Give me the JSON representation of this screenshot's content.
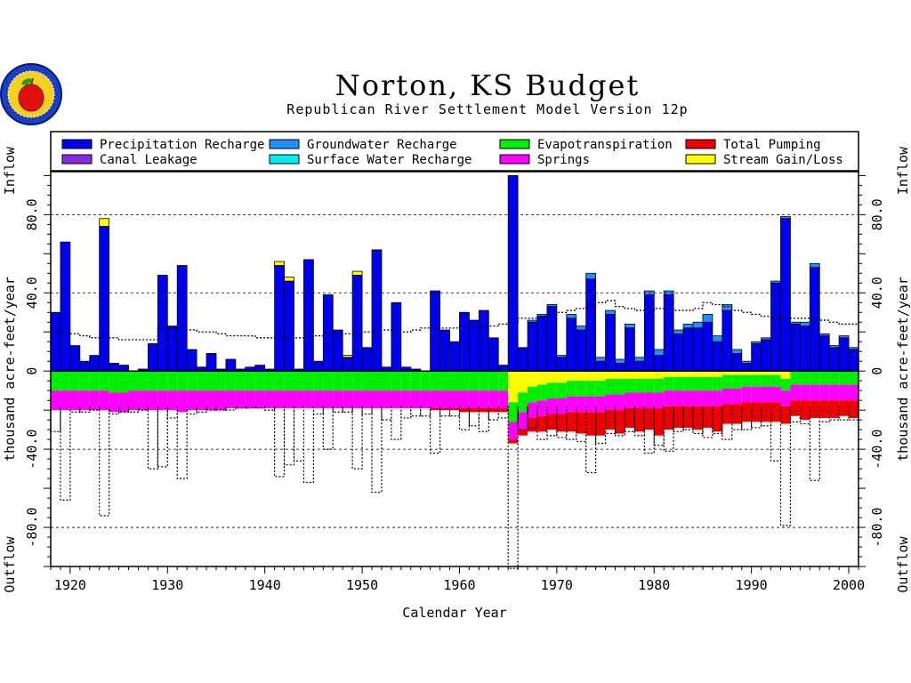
{
  "title": "Norton, KS Budget",
  "subtitle": "Republican River Settlement Model Version 12p",
  "logo": {
    "name": "apple-seal-logo"
  },
  "chart_data": {
    "type": "bar",
    "xlabel": "Calendar Year",
    "ylabel": "thousand acre-feet/year",
    "ylabel_top": "Inflow",
    "ylabel_bottom": "Outflow",
    "xlim": [
      1918,
      2001
    ],
    "ylim": [
      -100,
      102
    ],
    "xticks": [
      1920,
      1930,
      1940,
      1950,
      1960,
      1970,
      1980,
      1990,
      2000
    ],
    "yticks": [
      -80,
      -40,
      0,
      40,
      80
    ],
    "ytick_labels": [
      "-80.0",
      "-40.0",
      "0",
      "40.0",
      "80.0"
    ],
    "dashed_grid_y": [
      -80,
      -40,
      40,
      80
    ],
    "legend_position": "top",
    "legend": [
      {
        "label": "Precipitation Recharge",
        "color": "#0000ee"
      },
      {
        "label": "Groundwater Recharge",
        "color": "#1e90ff"
      },
      {
        "label": "Evapotranspiration",
        "color": "#00ee00"
      },
      {
        "label": "Total Pumping",
        "color": "#ee0000"
      },
      {
        "label": "Canal Leakage",
        "color": "#8a2be2"
      },
      {
        "label": "Surface Water Recharge",
        "color": "#00eeee"
      },
      {
        "label": "Springs",
        "color": "#ff00ff"
      },
      {
        "label": "Stream Gain/Loss",
        "color": "#ffff00"
      }
    ],
    "years": [
      1918,
      1919,
      1920,
      1921,
      1922,
      1923,
      1924,
      1925,
      1926,
      1927,
      1928,
      1929,
      1930,
      1931,
      1932,
      1933,
      1934,
      1935,
      1936,
      1937,
      1938,
      1939,
      1940,
      1941,
      1942,
      1943,
      1944,
      1945,
      1946,
      1947,
      1948,
      1949,
      1950,
      1951,
      1952,
      1953,
      1954,
      1955,
      1956,
      1957,
      1958,
      1959,
      1960,
      1961,
      1962,
      1963,
      1964,
      1965,
      1966,
      1967,
      1968,
      1969,
      1970,
      1971,
      1972,
      1973,
      1974,
      1975,
      1976,
      1977,
      1978,
      1979,
      1980,
      1981,
      1982,
      1983,
      1984,
      1985,
      1986,
      1987,
      1988,
      1989,
      1990,
      1991,
      1992,
      1993,
      1994,
      1995,
      1996,
      1997,
      1998,
      1999,
      2000
    ],
    "series": [
      {
        "name": "Precipitation Recharge",
        "values": [
          30,
          66,
          13,
          5,
          8,
          74,
          4,
          3,
          0,
          1,
          14,
          49,
          23,
          54,
          11,
          2,
          9,
          1,
          6,
          1,
          2,
          3,
          1,
          54,
          46,
          1,
          57,
          5,
          39,
          21,
          7,
          49,
          12,
          62,
          2,
          35,
          2,
          1,
          0,
          41,
          21,
          15,
          30,
          26,
          31,
          17,
          3,
          100,
          12,
          25,
          28,
          33,
          7,
          27,
          21,
          47,
          5,
          29,
          4,
          22,
          5,
          39,
          8,
          39,
          19,
          22,
          22,
          25,
          15,
          31,
          9,
          4,
          14,
          16,
          45,
          78,
          24,
          23,
          53,
          18,
          12,
          17,
          11
        ]
      },
      {
        "name": "Groundwater Recharge",
        "values": [
          0,
          0,
          0,
          0,
          0,
          0,
          0,
          0,
          0,
          0,
          0,
          0,
          0,
          0,
          0,
          0,
          0,
          0,
          0,
          0,
          0,
          0,
          0,
          0,
          0,
          0,
          0,
          0,
          0,
          0,
          0,
          0,
          0,
          0,
          0,
          0,
          0,
          0,
          0,
          0,
          0,
          0,
          0,
          0,
          0,
          0,
          0,
          0,
          0,
          1,
          1,
          1,
          1,
          2,
          2,
          3,
          2,
          2,
          2,
          2,
          2,
          2,
          3,
          2,
          2,
          2,
          3,
          4,
          3,
          3,
          2,
          1,
          1,
          1,
          1,
          1,
          1,
          2,
          2,
          1,
          1,
          1,
          1
        ]
      },
      {
        "name": "Stream Gain/Loss",
        "values": [
          0,
          0,
          0,
          0,
          0,
          4,
          0,
          0,
          0,
          0,
          0,
          0,
          0,
          0,
          0,
          0,
          0,
          0,
          0,
          0,
          0,
          0,
          0,
          2,
          2,
          0,
          0,
          0,
          0,
          0,
          1,
          2,
          0,
          0,
          0,
          0,
          0,
          0,
          0,
          0,
          0,
          0,
          0,
          0,
          0,
          0,
          0,
          0,
          0,
          0,
          0,
          0,
          0,
          0,
          0,
          0,
          0,
          0,
          0,
          0,
          0,
          0,
          0,
          0,
          0,
          0,
          0,
          0,
          0,
          0,
          0,
          0,
          0,
          0,
          0,
          0,
          0,
          0,
          0,
          0,
          0,
          0,
          0
        ]
      },
      {
        "name": "Evapotranspiration",
        "values": [
          -10,
          -10,
          -10,
          -10,
          -10,
          -10,
          -11,
          -11,
          -10,
          -10,
          -10,
          -10,
          -10,
          -10,
          -10,
          -10,
          -10,
          -10,
          -10,
          -10,
          -10,
          -10,
          -10,
          -10,
          -10,
          -10,
          -10,
          -10,
          -10,
          -10,
          -10,
          -10,
          -10,
          -10,
          -10,
          -10,
          -10,
          -10,
          -10,
          -10,
          -10,
          -10,
          -10,
          -10,
          -10,
          -10,
          -10,
          -10,
          -10,
          -8,
          -8,
          -8,
          -8,
          -8,
          -8,
          -8,
          -8,
          -8,
          -8,
          -7,
          -7,
          -7,
          -7,
          -7,
          -7,
          -7,
          -7,
          -7,
          -7,
          -7,
          -7,
          -6,
          -6,
          -6,
          -6,
          -6,
          -7,
          -7,
          -7,
          -7,
          -7,
          -7,
          -7
        ]
      },
      {
        "name": "Springs",
        "values": [
          -10,
          -10,
          -10,
          -10,
          -10,
          -10,
          -10,
          -10,
          -10,
          -10,
          -10,
          -10,
          -10,
          -11,
          -10,
          -10,
          -10,
          -10,
          -9,
          -9,
          -9,
          -9,
          -9,
          -9,
          -9,
          -9,
          -9,
          -9,
          -9,
          -9,
          -9,
          -9,
          -9,
          -9,
          -9,
          -9,
          -9,
          -9,
          -9,
          -9,
          -9,
          -9,
          -9,
          -9,
          -9,
          -9,
          -9,
          -9,
          -9,
          -8,
          -8,
          -8,
          -8,
          -8,
          -8,
          -8,
          -8,
          -8,
          -8,
          -8,
          -8,
          -8,
          -8,
          -8,
          -8,
          -8,
          -8,
          -8,
          -8,
          -8,
          -8,
          -8,
          -8,
          -8,
          -8,
          -8,
          -8,
          -8,
          -8,
          -8,
          -8,
          -8,
          -8
        ]
      },
      {
        "name": "Total Pumping",
        "values": [
          0,
          0,
          0,
          0,
          0,
          0,
          0,
          0,
          0,
          0,
          0,
          0,
          0,
          0,
          0,
          0,
          0,
          0,
          0,
          0,
          0,
          0,
          0,
          0,
          0,
          0,
          0,
          0,
          0,
          0,
          0,
          0,
          0,
          0,
          0,
          0,
          0,
          0,
          0,
          -1,
          -1,
          -1,
          -2,
          -2,
          -2,
          -2,
          -2,
          -2,
          -3,
          -7,
          -8,
          -8,
          -9,
          -10,
          -11,
          -12,
          -12,
          -10,
          -12,
          -10,
          -12,
          -11,
          -14,
          -12,
          -11,
          -11,
          -12,
          -11,
          -13,
          -10,
          -10,
          -10,
          -10,
          -10,
          -10,
          -9,
          -8,
          -10,
          -9,
          -9,
          -9,
          -8,
          -9
        ]
      },
      {
        "name": "Stream Gain/Loss outflow",
        "values": [
          0,
          0,
          0,
          0,
          0,
          0,
          0,
          0,
          0,
          0,
          0,
          0,
          0,
          0,
          0,
          0,
          0,
          0,
          0,
          0,
          0,
          0,
          0,
          0,
          0,
          0,
          0,
          0,
          0,
          0,
          0,
          0,
          0,
          0,
          0,
          0,
          0,
          0,
          0,
          0,
          0,
          0,
          0,
          0,
          0,
          0,
          0,
          -16,
          -11,
          -8,
          -7,
          -6,
          -6,
          -5,
          -5,
          -5,
          -5,
          -4,
          -4,
          -4,
          -4,
          -4,
          -4,
          -3,
          -3,
          -3,
          -3,
          -3,
          -3,
          -2,
          -2,
          -2,
          -2,
          -2,
          -2,
          -4,
          0,
          0,
          0,
          0,
          0,
          0,
          0
        ]
      },
      {
        "name": "Total Outflow (dotted)",
        "values": [
          -31,
          -66,
          -21,
          -21,
          -20,
          -74,
          -22,
          -21,
          -21,
          -20,
          -50,
          -49,
          -24,
          -55,
          -22,
          -21,
          -20,
          -20,
          -20,
          -19,
          -19,
          -19,
          -20,
          -54,
          -48,
          -46,
          -57,
          -22,
          -40,
          -21,
          -21,
          -50,
          -22,
          -62,
          -25,
          -35,
          -24,
          -23,
          -23,
          -42,
          -23,
          -23,
          -30,
          -28,
          -31,
          -25,
          -24,
          -101,
          -30,
          -29,
          -35,
          -33,
          -34,
          -35,
          -36,
          -52,
          -37,
          -32,
          -33,
          -31,
          -33,
          -42,
          -38,
          -41,
          -31,
          -30,
          -32,
          -34,
          -32,
          -35,
          -30,
          -30,
          -29,
          -28,
          -46,
          -79,
          -26,
          -27,
          -56,
          -26,
          -25,
          -25,
          -25
        ]
      },
      {
        "name": "Total Inflow (dotted)",
        "values": [
          20,
          20,
          19,
          18,
          17,
          17,
          17,
          16,
          16,
          16,
          16,
          22,
          22,
          22,
          21,
          20,
          20,
          19,
          18,
          18,
          18,
          17,
          17,
          17,
          17,
          17,
          18,
          18,
          19,
          19,
          19,
          19,
          20,
          21,
          21,
          20,
          20,
          21,
          22,
          22,
          22,
          22,
          23,
          23,
          23,
          23,
          24,
          25,
          27,
          27,
          28,
          29,
          30,
          31,
          32,
          33,
          35,
          36,
          33,
          32,
          31,
          31,
          32,
          32,
          31,
          31,
          32,
          35,
          34,
          33,
          31,
          30,
          29,
          28,
          27,
          27,
          27,
          27,
          27,
          26,
          25,
          24,
          24
        ]
      }
    ]
  }
}
